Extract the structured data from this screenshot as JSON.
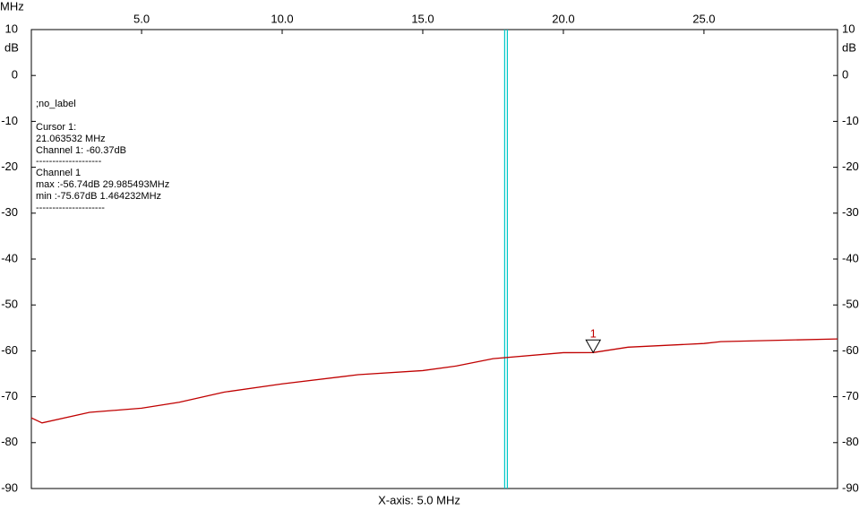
{
  "chart_data": {
    "type": "line",
    "x_unit": "MHz",
    "y_unit": "dB",
    "x_axis_label": "X-axis: 5.0 MHz",
    "xlim": [
      1.08,
      29.75
    ],
    "xticks": [
      {
        "value": 5,
        "label": "5.0"
      },
      {
        "value": 10,
        "label": "10.0"
      },
      {
        "value": 15,
        "label": "15.0"
      },
      {
        "value": 20,
        "label": "20.0"
      },
      {
        "value": 25,
        "label": "25.0"
      }
    ],
    "ylim": [
      -90,
      10
    ],
    "yticks": [
      10,
      0,
      -10,
      -20,
      -30,
      -40,
      -50,
      -60,
      -70,
      -80,
      -90
    ],
    "series": [
      {
        "name": "Channel 1",
        "color": "#c00000",
        "x": [
          1.08,
          1.46,
          3.15,
          5,
          6.34,
          7.93,
          10,
          12.7,
          15,
          16.2,
          17.5,
          20,
          21.06,
          22.3,
          25,
          25.6,
          29.75
        ],
        "values": [
          -74.6,
          -75.7,
          -73.4,
          -72.5,
          -71.2,
          -69,
          -67.2,
          -65.2,
          -64.3,
          -63.3,
          -61.7,
          -60.4,
          -60.37,
          -59.2,
          -58.4,
          -58,
          -57.4
        ]
      }
    ],
    "cursor_line_x": 17.96,
    "cursor_line_color": "#00c8c8",
    "marker": {
      "label": "1",
      "x": 21.06,
      "y": -60.37
    },
    "info_lines": [
      ";no_label",
      "Cursor 1:",
      "21.063532 MHz",
      "Channel 1: -60.37dB",
      "--------------------",
      "Channel 1",
      "max :-56.74dB 29.985493MHz",
      "min :-75.67dB 1.464232MHz",
      "---------------------"
    ]
  }
}
